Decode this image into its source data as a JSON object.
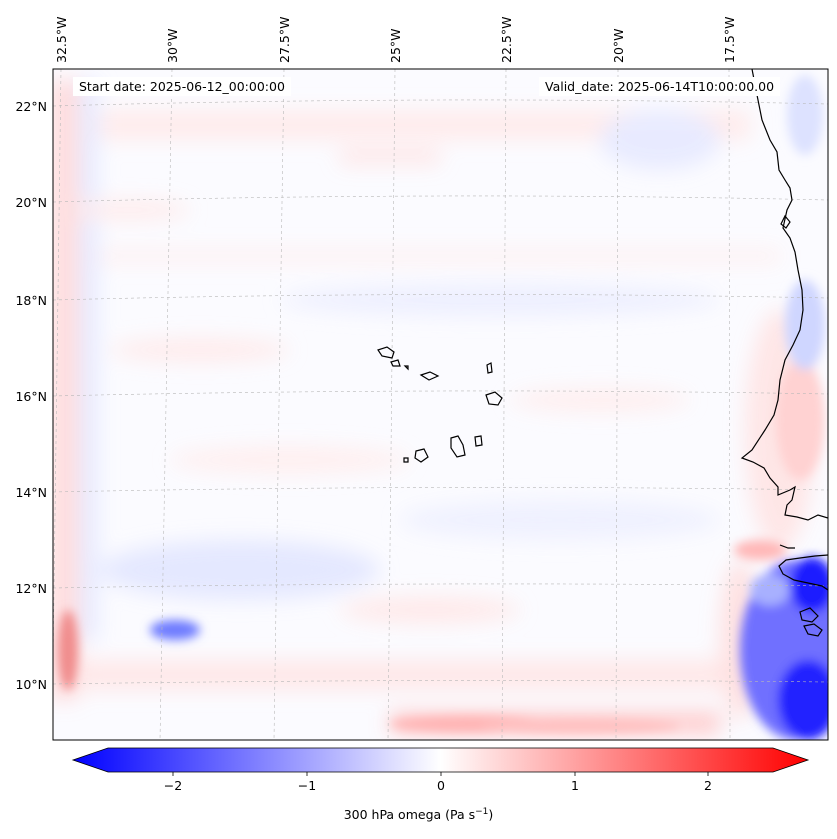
{
  "map": {
    "start_date": "Start date: 2025-06-12_00:00:00",
    "valid_date": "Valid_date: 2025-06-14T10:00:00.00",
    "lon_labels": [
      "32.5°W",
      "30°W",
      "27.5°W",
      "25°W",
      "22.5°W",
      "20°W",
      "17.5°W"
    ],
    "lat_labels": [
      "22°N",
      "20°N",
      "18°N",
      "16°N",
      "14°N",
      "12°N",
      "10°N"
    ],
    "field": "300 hPa omega",
    "colormap": "bwr",
    "colors": {
      "negative": "#0000ff",
      "zero": "#ffffff",
      "positive": "#ff0000",
      "coastline": "#000000"
    }
  },
  "colorbar": {
    "ticks": [
      "−2",
      "−1",
      "0",
      "1",
      "2"
    ],
    "range": [
      -2.7,
      2.7
    ],
    "label_main": "300 hPa omega (Pa s",
    "label_exp": "−1",
    "label_end": ")"
  }
}
